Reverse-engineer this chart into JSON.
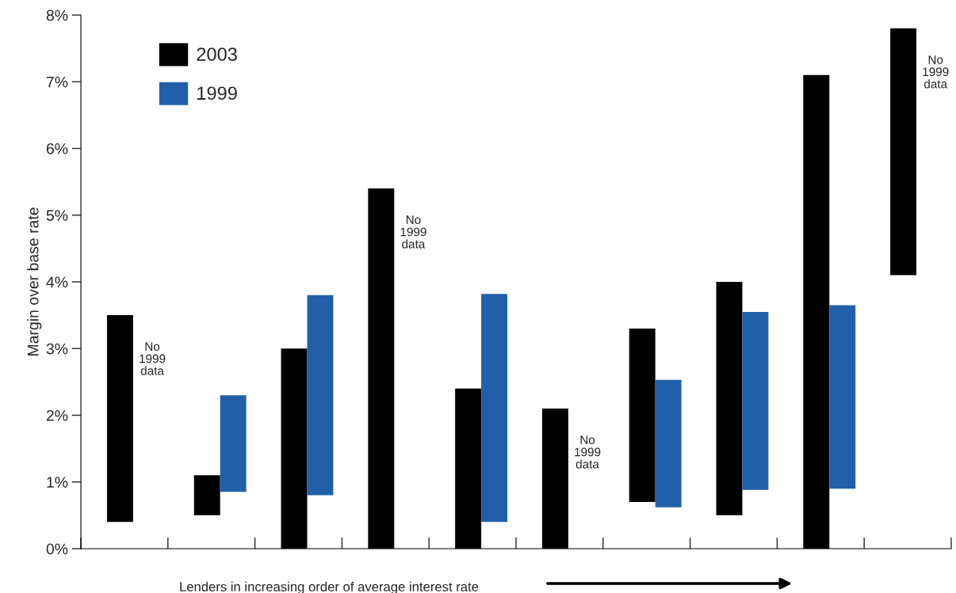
{
  "chart_data": {
    "type": "bar",
    "xlabel": "Lenders in increasing order of average interest rate",
    "ylabel": "Margin over base rate",
    "categories": [
      null,
      null,
      null,
      null,
      null,
      null,
      null,
      null,
      null,
      null
    ],
    "series": [
      {
        "name": "2003",
        "color": "#000000",
        "values": [
          3.1,
          0.6,
          3.0,
          5.4,
          2.4,
          2.1,
          2.6,
          3.5,
          7.1,
          3.7
        ],
        "base": [
          0.4,
          0.5,
          0,
          0,
          0,
          0,
          0.7,
          0.5,
          0,
          4.1
        ]
      },
      {
        "name": "1999",
        "color": "#2160a8",
        "values": [
          null,
          1.45,
          3.0,
          null,
          3.42,
          null,
          1.91,
          2.67,
          2.75,
          null
        ],
        "base": [
          null,
          0.85,
          0.8,
          null,
          0.4,
          null,
          0.62,
          0.88,
          0.9,
          null
        ]
      }
    ],
    "ylim": [
      0,
      8
    ],
    "yticks": [
      {
        "value": 0,
        "label": "0%"
      },
      {
        "value": 1,
        "label": "1%"
      },
      {
        "value": 2,
        "label": "2%"
      },
      {
        "value": 3,
        "label": "3%"
      },
      {
        "value": 4,
        "label": "4%"
      },
      {
        "value": 5,
        "label": "5%"
      },
      {
        "value": 6,
        "label": "6%"
      },
      {
        "value": 7,
        "label": "7%"
      },
      {
        "value": 8,
        "label": "8%"
      }
    ],
    "annotations": [
      "No\n1999\ndata",
      "No\n1999\ndata",
      "No\n1999\ndata",
      "No\n1999\ndata"
    ],
    "legend": "top left",
    "grid": false
  }
}
